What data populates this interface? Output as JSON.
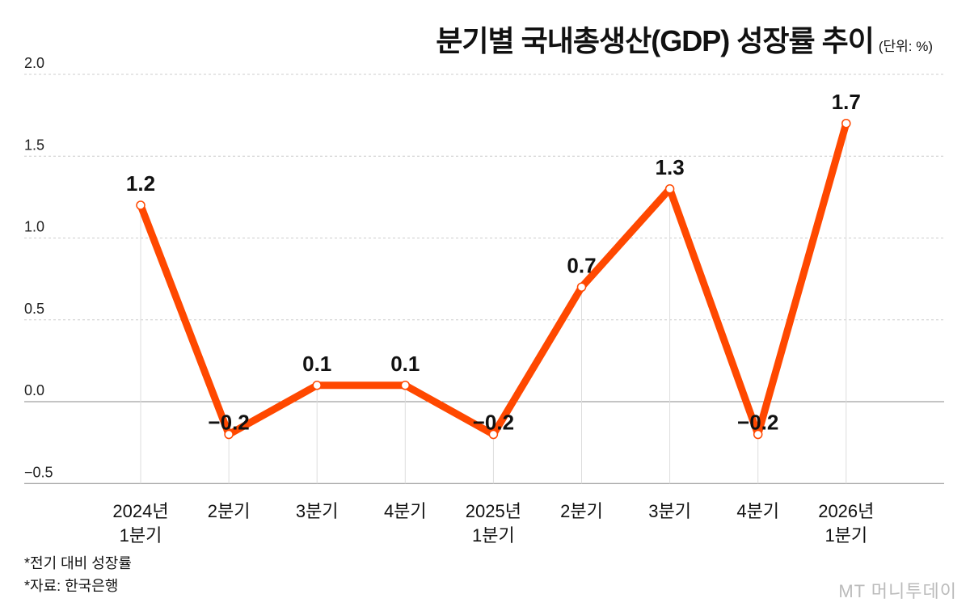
{
  "chart_data": {
    "type": "line",
    "title": "분기별 국내총생산(GDP) 성장률 추이",
    "unit": "(단위: %)",
    "categories": [
      [
        "2024년",
        "1분기"
      ],
      [
        "2분기"
      ],
      [
        "3분기"
      ],
      [
        "4분기"
      ],
      [
        "2025년",
        "1분기"
      ],
      [
        "2분기"
      ],
      [
        "3분기"
      ],
      [
        "4분기"
      ],
      [
        "2026년",
        "1분기"
      ]
    ],
    "values": [
      1.2,
      -0.2,
      0.1,
      0.1,
      -0.2,
      0.7,
      1.3,
      -0.2,
      1.7
    ],
    "data_labels": [
      "1.2",
      "−0.2",
      "0.1",
      "0.1",
      "−0.2",
      "0.7",
      "1.3",
      "−0.2",
      "1.7"
    ],
    "yticks": [
      2.0,
      1.5,
      1.0,
      0.5,
      0.0,
      -0.5
    ],
    "ytick_labels": [
      "2.0",
      "1.5",
      "1.0",
      "0.5",
      "0.0",
      "−0.5"
    ],
    "ylim": [
      -0.5,
      2.0
    ],
    "grid": true,
    "line_color": "#ff4800"
  },
  "notes": [
    "*전기 대비 성장률",
    "*자료: 한국은행"
  ],
  "logo": "MT 머니투데이"
}
